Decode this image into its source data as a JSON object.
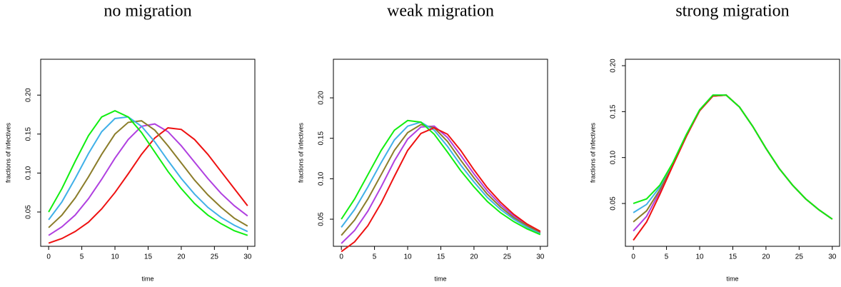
{
  "chart_data": [
    {
      "type": "line",
      "title": "no migration",
      "x_label": "time",
      "y_label": "fractions of infectives",
      "x": [
        0,
        2,
        4,
        6,
        8,
        10,
        12,
        14,
        16,
        18,
        20,
        22,
        24,
        26,
        28,
        30
      ],
      "xlim": [
        -1.2,
        31.1
      ],
      "xticks": [
        0,
        5,
        10,
        15,
        20,
        25,
        30
      ],
      "ylim": [
        0.006,
        0.246
      ],
      "yticks": [
        0.05,
        {
          "value": 0.1,
          "label": "0.10"
        },
        0.15,
        {
          "value": 0.2,
          "label": "0.20"
        }
      ],
      "series": [
        {
          "color": "#b040e0",
          "values": [
            0.02,
            0.031,
            0.046,
            0.067,
            0.092,
            0.119,
            0.143,
            0.16,
            0.163,
            0.153,
            0.135,
            0.114,
            0.093,
            0.074,
            0.058,
            0.045
          ]
        },
        {
          "color": "#ee1111",
          "values": [
            0.01,
            0.016,
            0.025,
            0.037,
            0.054,
            0.075,
            0.099,
            0.124,
            0.145,
            0.158,
            0.156,
            0.143,
            0.124,
            0.102,
            0.08,
            0.058
          ]
        },
        {
          "color": "#8b7d2a",
          "values": [
            0.03,
            0.046,
            0.068,
            0.095,
            0.124,
            0.15,
            0.165,
            0.167,
            0.155,
            0.135,
            0.113,
            0.091,
            0.072,
            0.056,
            0.042,
            0.032
          ]
        },
        {
          "color": "#40b0e8",
          "values": [
            0.04,
            0.063,
            0.093,
            0.125,
            0.153,
            0.17,
            0.172,
            0.16,
            0.14,
            0.116,
            0.093,
            0.073,
            0.056,
            0.043,
            0.033,
            0.025
          ]
        },
        {
          "color": "#11ee11",
          "values": [
            0.05,
            0.08,
            0.115,
            0.148,
            0.172,
            0.18,
            0.172,
            0.152,
            0.127,
            0.102,
            0.08,
            0.061,
            0.046,
            0.035,
            0.026,
            0.02
          ]
        }
      ]
    },
    {
      "type": "line",
      "title": "weak migration",
      "x_label": "time",
      "y_label": "fractions of infectives",
      "x": [
        0,
        2,
        4,
        6,
        8,
        10,
        12,
        14,
        16,
        18,
        20,
        22,
        24,
        26,
        28,
        30
      ],
      "xlim": [
        -1.2,
        31.1
      ],
      "xticks": [
        0,
        5,
        10,
        15,
        20,
        25,
        30
      ],
      "ylim": [
        0.0165,
        0.2477
      ],
      "yticks": [
        0.05,
        {
          "value": 0.1,
          "label": "0.10"
        },
        0.15,
        {
          "value": 0.2,
          "label": "0.20"
        }
      ],
      "series": [
        {
          "color": "#b040e0",
          "values": [
            0.02,
            0.036,
            0.06,
            0.09,
            0.122,
            0.149,
            0.164,
            0.165,
            0.151,
            0.129,
            0.106,
            0.085,
            0.068,
            0.054,
            0.043,
            0.034
          ]
        },
        {
          "color": "#8b7d2a",
          "values": [
            0.03,
            0.049,
            0.075,
            0.105,
            0.135,
            0.157,
            0.167,
            0.163,
            0.146,
            0.123,
            0.101,
            0.081,
            0.065,
            0.052,
            0.042,
            0.033
          ]
        },
        {
          "color": "#40b0e8",
          "values": [
            0.04,
            0.062,
            0.09,
            0.12,
            0.148,
            0.165,
            0.17,
            0.16,
            0.14,
            0.117,
            0.096,
            0.077,
            0.062,
            0.05,
            0.04,
            0.032
          ]
        },
        {
          "color": "#11ee11",
          "values": [
            0.05,
            0.075,
            0.105,
            0.135,
            0.16,
            0.172,
            0.17,
            0.155,
            0.133,
            0.11,
            0.09,
            0.072,
            0.058,
            0.047,
            0.038,
            0.031
          ]
        },
        {
          "color": "#ee1111",
          "values": [
            0.01,
            0.022,
            0.042,
            0.07,
            0.103,
            0.135,
            0.156,
            0.163,
            0.155,
            0.135,
            0.111,
            0.089,
            0.071,
            0.056,
            0.044,
            0.035
          ]
        }
      ]
    },
    {
      "type": "line",
      "title": "strong migration",
      "x_label": "time",
      "y_label": "fractions of infectives",
      "x": [
        0,
        2,
        4,
        6,
        8,
        10,
        12,
        14,
        16,
        18,
        20,
        22,
        24,
        26,
        28,
        30
      ],
      "xlim": [
        -1.2,
        31.1
      ],
      "xticks": [
        0,
        5,
        10,
        15,
        20,
        25,
        30
      ],
      "ylim": [
        0.0034,
        0.207
      ],
      "yticks": [
        0.05,
        {
          "value": 0.1,
          "label": "0.10"
        },
        0.15,
        {
          "value": 0.2,
          "label": "0.20"
        }
      ],
      "series": [
        {
          "color": "#b040e0",
          "values": [
            0.02,
            0.036,
            0.063,
            0.093,
            0.124,
            0.151,
            0.167,
            0.168,
            0.155,
            0.134,
            0.11,
            0.088,
            0.07,
            0.055,
            0.043,
            0.033
          ]
        },
        {
          "color": "#8b7d2a",
          "values": [
            0.03,
            0.042,
            0.065,
            0.094,
            0.124,
            0.151,
            0.167,
            0.168,
            0.155,
            0.134,
            0.11,
            0.088,
            0.07,
            0.055,
            0.043,
            0.033
          ]
        },
        {
          "color": "#40b0e8",
          "values": [
            0.04,
            0.049,
            0.068,
            0.095,
            0.125,
            0.152,
            0.168,
            0.168,
            0.155,
            0.134,
            0.11,
            0.088,
            0.07,
            0.055,
            0.043,
            0.033
          ]
        },
        {
          "color": "#ee1111",
          "values": [
            0.01,
            0.03,
            0.06,
            0.092,
            0.123,
            0.151,
            0.167,
            0.168,
            0.155,
            0.134,
            0.11,
            0.088,
            0.07,
            0.055,
            0.043,
            0.033
          ]
        },
        {
          "color": "#11ee11",
          "values": [
            0.05,
            0.055,
            0.07,
            0.095,
            0.125,
            0.152,
            0.168,
            0.168,
            0.155,
            0.134,
            0.11,
            0.088,
            0.07,
            0.055,
            0.043,
            0.033
          ]
        }
      ]
    }
  ]
}
